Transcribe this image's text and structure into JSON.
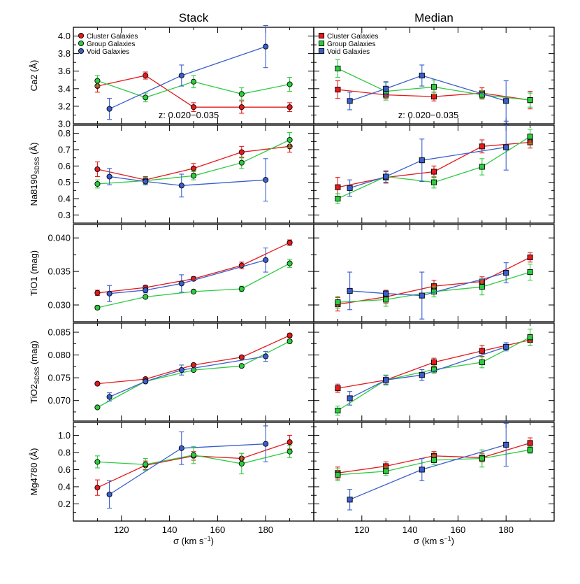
{
  "figure": {
    "column_titles": [
      "Stack",
      "Median"
    ],
    "xlabel_main": "σ (km s",
    "xlabel_sup": "−1",
    "xlabel_close": ")",
    "z_label": "z: 0.020−0.035"
  },
  "legend": [
    {
      "label": "Cluster Galaxies",
      "color": "#e41a1c"
    },
    {
      "label": "Group Galaxies",
      "color": "#2ecc40"
    },
    {
      "label": "Void Galaxies",
      "color": "#3a5fcd"
    }
  ],
  "series_colors": {
    "cluster": "#e41a1c",
    "group": "#2ecc40",
    "void": "#3a5fcd"
  },
  "marker_shapes": {
    "stack": "circle",
    "median": "square"
  },
  "chart_data": [
    {
      "type": "line",
      "panel": "stack-ca2",
      "ylabel": "Ca2 (Å)",
      "xlim": [
        100,
        200
      ],
      "ylim": [
        3.0,
        4.1
      ],
      "xticks": [
        120,
        140,
        160,
        180
      ],
      "yticks": [
        "3.0",
        "3.2",
        "3.4",
        "3.6",
        "3.8",
        "4.0"
      ],
      "series": [
        {
          "name": "Cluster Galaxies",
          "points": [
            [
              110,
              3.43,
              0.07
            ],
            [
              130,
              3.55,
              0.04
            ],
            [
              150,
              3.19,
              0.05
            ],
            [
              170,
              3.19,
              0.07
            ],
            [
              190,
              3.19,
              0.05
            ]
          ]
        },
        {
          "name": "Group Galaxies",
          "points": [
            [
              110,
              3.49,
              0.06
            ],
            [
              130,
              3.3,
              0.05
            ],
            [
              150,
              3.48,
              0.07
            ],
            [
              170,
              3.34,
              0.07
            ],
            [
              190,
              3.45,
              0.08
            ]
          ]
        },
        {
          "name": "Void Galaxies",
          "points": [
            [
              115,
              3.17,
              0.12
            ],
            [
              145,
              3.55,
              0.12
            ],
            [
              180,
              3.88,
              0.24
            ]
          ]
        }
      ]
    },
    {
      "type": "line",
      "panel": "median-ca2",
      "ylabel": "",
      "xlim": [
        100,
        200
      ],
      "ylim": [
        3.0,
        4.1
      ],
      "xticks": [
        120,
        140,
        160,
        180
      ],
      "yticks": [],
      "series": [
        {
          "name": "Cluster Galaxies",
          "points": [
            [
              110,
              3.39,
              0.1
            ],
            [
              130,
              3.33,
              0.04
            ],
            [
              150,
              3.31,
              0.05
            ],
            [
              170,
              3.35,
              0.06
            ],
            [
              190,
              3.27,
              0.1
            ]
          ]
        },
        {
          "name": "Group Galaxies",
          "points": [
            [
              110,
              3.63,
              0.1
            ],
            [
              130,
              3.37,
              0.1
            ],
            [
              150,
              3.42,
              0.08
            ],
            [
              170,
              3.33,
              0.05
            ],
            [
              190,
              3.27,
              0.08
            ]
          ]
        },
        {
          "name": "Void Galaxies",
          "points": [
            [
              115,
              3.26,
              0.1
            ],
            [
              130,
              3.4,
              0.08
            ],
            [
              145,
              3.55,
              0.12
            ],
            [
              180,
              3.26,
              0.23
            ]
          ]
        }
      ]
    },
    {
      "type": "line",
      "panel": "stack-na8190",
      "ylabel": "Na8190",
      "ylabel_sub": "SDSS",
      "ylabel_tail": " (Å)",
      "xlim": [
        100,
        200
      ],
      "ylim": [
        0.25,
        0.85
      ],
      "xticks": [
        120,
        140,
        160,
        180
      ],
      "yticks": [
        "0.3",
        "0.4",
        "0.5",
        "0.6",
        "0.7",
        "0.8"
      ],
      "series": [
        {
          "name": "Cluster Galaxies",
          "points": [
            [
              110,
              0.58,
              0.045
            ],
            [
              130,
              0.515,
              0.02
            ],
            [
              150,
              0.585,
              0.03
            ],
            [
              170,
              0.685,
              0.035
            ],
            [
              190,
              0.72,
              0.035
            ]
          ]
        },
        {
          "name": "Group Galaxies",
          "points": [
            [
              110,
              0.49,
              0.025
            ],
            [
              130,
              0.51,
              0.02
            ],
            [
              150,
              0.54,
              0.025
            ],
            [
              170,
              0.62,
              0.035
            ],
            [
              190,
              0.76,
              0.045
            ]
          ]
        },
        {
          "name": "Void Galaxies",
          "points": [
            [
              115,
              0.535,
              0.05
            ],
            [
              130,
              0.505,
              0.02
            ],
            [
              145,
              0.48,
              0.07
            ],
            [
              180,
              0.515,
              0.13
            ]
          ]
        }
      ]
    },
    {
      "type": "line",
      "panel": "median-na8190",
      "ylabel": "",
      "xlim": [
        100,
        200
      ],
      "ylim": [
        0.25,
        0.85
      ],
      "xticks": [
        120,
        140,
        160,
        180
      ],
      "yticks": [],
      "series": [
        {
          "name": "Cluster Galaxies",
          "points": [
            [
              110,
              0.47,
              0.06
            ],
            [
              130,
              0.53,
              0.035
            ],
            [
              150,
              0.565,
              0.035
            ],
            [
              170,
              0.72,
              0.04
            ],
            [
              190,
              0.745,
              0.035
            ]
          ]
        },
        {
          "name": "Group Galaxies",
          "points": [
            [
              110,
              0.4,
              0.03
            ],
            [
              130,
              0.535,
              0.035
            ],
            [
              150,
              0.5,
              0.035
            ],
            [
              170,
              0.595,
              0.05
            ],
            [
              190,
              0.78,
              0.045
            ]
          ]
        },
        {
          "name": "Void Galaxies",
          "points": [
            [
              115,
              0.465,
              0.05
            ],
            [
              130,
              0.535,
              0.035
            ],
            [
              145,
              0.635,
              0.13
            ],
            [
              180,
              0.715,
              0.14
            ]
          ]
        }
      ]
    },
    {
      "type": "line",
      "panel": "stack-tio1",
      "ylabel": "TiO1 (mag)",
      "xlim": [
        100,
        200
      ],
      "ylim": [
        0.0275,
        0.042
      ],
      "xticks": [
        120,
        140,
        160,
        180
      ],
      "yticks": [
        "0.030",
        "0.035",
        "0.040"
      ],
      "series": [
        {
          "name": "Cluster Galaxies",
          "points": [
            [
              110,
              0.0318,
              0.0004
            ],
            [
              130,
              0.0326,
              0.0003
            ],
            [
              150,
              0.0339,
              0.0003
            ],
            [
              170,
              0.0359,
              0.0005
            ],
            [
              190,
              0.0393,
              0.0004
            ]
          ]
        },
        {
          "name": "Group Galaxies",
          "points": [
            [
              110,
              0.0296,
              0.0003
            ],
            [
              130,
              0.0312,
              0.0002
            ],
            [
              150,
              0.032,
              0.0002
            ],
            [
              170,
              0.0324,
              0.0004
            ],
            [
              190,
              0.0362,
              0.0006
            ]
          ]
        },
        {
          "name": "Void Galaxies",
          "points": [
            [
              115,
              0.0317,
              0.0012
            ],
            [
              130,
              0.0322,
              0.0004
            ],
            [
              145,
              0.0332,
              0.0013
            ],
            [
              180,
              0.0367,
              0.0018
            ]
          ]
        }
      ]
    },
    {
      "type": "line",
      "panel": "median-tio1",
      "ylabel": "",
      "xlim": [
        100,
        200
      ],
      "ylim": [
        0.0275,
        0.042
      ],
      "xticks": [
        120,
        140,
        160,
        180
      ],
      "yticks": [],
      "series": [
        {
          "name": "Cluster Galaxies",
          "points": [
            [
              110,
              0.0301,
              0.001
            ],
            [
              130,
              0.0312,
              0.001
            ],
            [
              150,
              0.0328,
              0.0009
            ],
            [
              170,
              0.0335,
              0.0007
            ],
            [
              190,
              0.0371,
              0.0007
            ]
          ]
        },
        {
          "name": "Group Galaxies",
          "points": [
            [
              110,
              0.0304,
              0.0009
            ],
            [
              130,
              0.0308,
              0.001
            ],
            [
              150,
              0.032,
              0.0008
            ],
            [
              170,
              0.0327,
              0.0012
            ],
            [
              190,
              0.0349,
              0.0012
            ]
          ]
        },
        {
          "name": "Void Galaxies",
          "points": [
            [
              115,
              0.0321,
              0.0028
            ],
            [
              130,
              0.0317,
              0.0004
            ],
            [
              145,
              0.0314,
              0.0035
            ],
            [
              180,
              0.0348,
              0.0015
            ]
          ]
        }
      ]
    },
    {
      "type": "line",
      "panel": "stack-tio2",
      "ylabel": "TiO2",
      "ylabel_sub": "SDSS",
      "ylabel_tail": " (mag)",
      "xlim": [
        100,
        200
      ],
      "ylim": [
        0.0655,
        0.087
      ],
      "xticks": [
        120,
        140,
        160,
        180
      ],
      "yticks": [
        "0.070",
        "0.075",
        "0.080",
        "0.085"
      ],
      "series": [
        {
          "name": "Cluster Galaxies",
          "points": [
            [
              110,
              0.0737,
              0.0003
            ],
            [
              130,
              0.0747,
              0.0003
            ],
            [
              150,
              0.0778,
              0.0003
            ],
            [
              170,
              0.0795,
              0.0003
            ],
            [
              190,
              0.0843,
              0.0004
            ]
          ]
        },
        {
          "name": "Group Galaxies",
          "points": [
            [
              110,
              0.0685,
              0.0003
            ],
            [
              130,
              0.0742,
              0.0003
            ],
            [
              150,
              0.0767,
              0.0003
            ],
            [
              170,
              0.0776,
              0.0003
            ],
            [
              190,
              0.083,
              0.0004
            ]
          ]
        },
        {
          "name": "Void Galaxies",
          "points": [
            [
              115,
              0.0708,
              0.0009
            ],
            [
              130,
              0.0742,
              0.0003
            ],
            [
              145,
              0.0767,
              0.0011
            ],
            [
              180,
              0.0797,
              0.0011
            ]
          ]
        }
      ]
    },
    {
      "type": "line",
      "panel": "median-tio2",
      "ylabel": "",
      "xlim": [
        100,
        200
      ],
      "ylim": [
        0.0655,
        0.087
      ],
      "xticks": [
        120,
        140,
        160,
        180
      ],
      "yticks": [],
      "series": [
        {
          "name": "Cluster Galaxies",
          "points": [
            [
              110,
              0.0727,
              0.0009
            ],
            [
              130,
              0.0745,
              0.0009
            ],
            [
              150,
              0.0784,
              0.0009
            ],
            [
              170,
              0.0809,
              0.0012
            ],
            [
              190,
              0.0833,
              0.0012
            ]
          ]
        },
        {
          "name": "Group Galaxies",
          "points": [
            [
              110,
              0.0678,
              0.001
            ],
            [
              130,
              0.0745,
              0.0011
            ],
            [
              150,
              0.0768,
              0.0008
            ],
            [
              170,
              0.0784,
              0.0012
            ],
            [
              190,
              0.0839,
              0.0018
            ]
          ]
        },
        {
          "name": "Void Galaxies",
          "points": [
            [
              115,
              0.0705,
              0.0015
            ],
            [
              130,
              0.0745,
              0.0009
            ],
            [
              145,
              0.0756,
              0.0012
            ],
            [
              180,
              0.0818,
              0.0009
            ]
          ]
        }
      ]
    },
    {
      "type": "line",
      "panel": "stack-mg4780",
      "ylabel": "Mg4780 (Å)",
      "xlim": [
        100,
        200
      ],
      "ylim": [
        0.0,
        1.15
      ],
      "xticks": [
        120,
        140,
        160,
        180
      ],
      "yticks": [
        "0.2",
        "0.4",
        "0.6",
        "0.8",
        "1.0"
      ],
      "series": [
        {
          "name": "Cluster Galaxies",
          "points": [
            [
              110,
              0.39,
              0.09
            ],
            [
              130,
              0.65,
              0.05
            ],
            [
              150,
              0.76,
              0.05
            ],
            [
              170,
              0.73,
              0.06
            ],
            [
              190,
              0.92,
              0.08
            ]
          ]
        },
        {
          "name": "Group Galaxies",
          "points": [
            [
              110,
              0.69,
              0.07
            ],
            [
              130,
              0.66,
              0.07
            ],
            [
              150,
              0.77,
              0.1
            ],
            [
              170,
              0.67,
              0.12
            ],
            [
              190,
              0.81,
              0.07
            ]
          ]
        },
        {
          "name": "Void Galaxies",
          "points": [
            [
              115,
              0.31,
              0.16
            ],
            [
              145,
              0.85,
              0.19
            ],
            [
              180,
              0.9,
              0.21
            ]
          ]
        }
      ]
    },
    {
      "type": "line",
      "panel": "median-mg4780",
      "ylabel": "",
      "xlim": [
        100,
        200
      ],
      "ylim": [
        0.0,
        1.15
      ],
      "xticks": [
        120,
        140,
        160,
        180
      ],
      "yticks": [],
      "series": [
        {
          "name": "Cluster Galaxies",
          "points": [
            [
              110,
              0.56,
              0.07
            ],
            [
              130,
              0.64,
              0.05
            ],
            [
              150,
              0.76,
              0.05
            ],
            [
              170,
              0.74,
              0.05
            ],
            [
              190,
              0.91,
              0.06
            ]
          ]
        },
        {
          "name": "Group Galaxies",
          "points": [
            [
              110,
              0.54,
              0.07
            ],
            [
              130,
              0.58,
              0.05
            ],
            [
              150,
              0.71,
              0.05
            ],
            [
              170,
              0.73,
              0.1
            ],
            [
              190,
              0.83,
              0.04
            ]
          ]
        },
        {
          "name": "Void Galaxies",
          "points": [
            [
              115,
              0.25,
              0.12
            ],
            [
              145,
              0.6,
              0.13
            ],
            [
              180,
              0.89,
              0.25
            ]
          ]
        }
      ]
    }
  ]
}
